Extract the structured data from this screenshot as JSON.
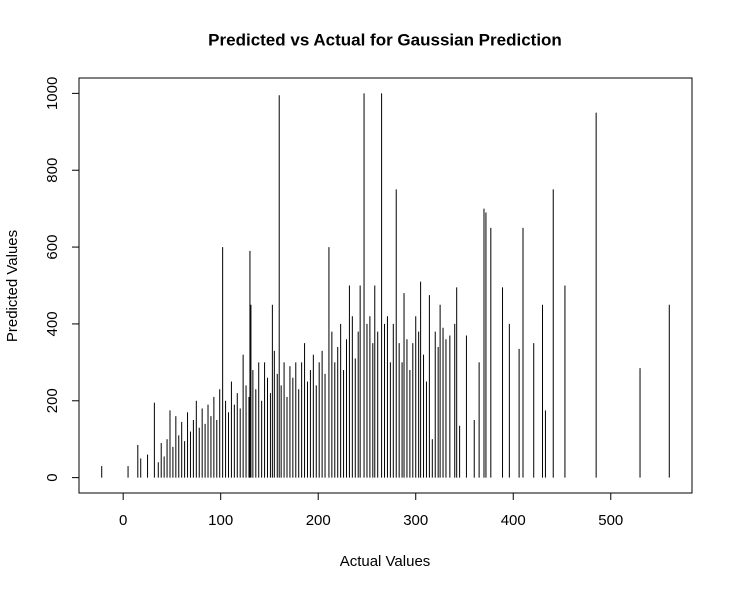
{
  "chart_data": {
    "type": "spike",
    "title": "Predicted vs Actual for Gaussian Prediction",
    "x_label": "Actual Values",
    "y_label": "Predicted Values",
    "color": "#000000",
    "xlim": [
      -45.3,
      583.3
    ],
    "ylim": [
      -40,
      1040
    ],
    "xticks": [
      0,
      100,
      200,
      300,
      400,
      500
    ],
    "yticks": [
      0,
      200,
      400,
      600,
      800,
      1000
    ],
    "x": [
      -22,
      5,
      15,
      18,
      25,
      32,
      36,
      39,
      42,
      45,
      48,
      51,
      54,
      57,
      60,
      63,
      66,
      69,
      72,
      75,
      78,
      81,
      84,
      87,
      90,
      93,
      96,
      99,
      102,
      105,
      108,
      111,
      114,
      117,
      120,
      123,
      126,
      129,
      130,
      131,
      133,
      136,
      139,
      142,
      145,
      148,
      151,
      153,
      155,
      158,
      160,
      162,
      165,
      168,
      171,
      174,
      177,
      180,
      183,
      186,
      189,
      192,
      195,
      198,
      201,
      204,
      207,
      211,
      214,
      217,
      220,
      223,
      226,
      229,
      232,
      235,
      238,
      241,
      243,
      247,
      250,
      253,
      256,
      258,
      261,
      265,
      268,
      271,
      274,
      277,
      280,
      283,
      286,
      288,
      291,
      294,
      297,
      300,
      303,
      305,
      308,
      311,
      314,
      317,
      320,
      323,
      325,
      328,
      331,
      335,
      340,
      342,
      345,
      352,
      360,
      365,
      370,
      372,
      377,
      389,
      396,
      406,
      410,
      421,
      430,
      433,
      441,
      453,
      485,
      530,
      560
    ],
    "values": [
      30,
      30,
      85,
      50,
      60,
      195,
      40,
      90,
      55,
      100,
      175,
      80,
      160,
      110,
      145,
      95,
      170,
      120,
      150,
      200,
      130,
      180,
      140,
      190,
      160,
      210,
      150,
      230,
      600,
      200,
      170,
      250,
      190,
      220,
      180,
      320,
      240,
      210,
      590,
      450,
      280,
      230,
      300,
      200,
      300,
      260,
      220,
      450,
      330,
      270,
      995,
      240,
      300,
      210,
      290,
      260,
      300,
      230,
      300,
      350,
      250,
      280,
      320,
      240,
      300,
      330,
      270,
      600,
      380,
      300,
      340,
      400,
      280,
      360,
      500,
      420,
      310,
      380,
      500,
      1000,
      400,
      420,
      350,
      500,
      380,
      1000,
      400,
      420,
      300,
      400,
      750,
      350,
      300,
      480,
      360,
      280,
      350,
      420,
      380,
      510,
      320,
      250,
      475,
      100,
      380,
      340,
      450,
      390,
      360,
      370,
      400,
      495,
      135,
      370,
      150,
      300,
      700,
      690,
      650,
      495,
      400,
      335,
      650,
      350,
      450,
      175,
      750,
      500,
      950,
      285,
      450
    ]
  }
}
